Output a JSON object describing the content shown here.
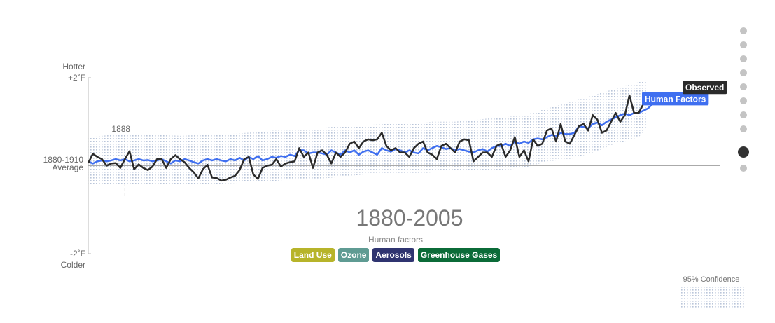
{
  "chart_data": {
    "type": "line",
    "title": "1880-2005",
    "y_top_label": "Hotter",
    "y_bottom_label": "Colder",
    "xlim": [
      1880,
      2005
    ],
    "ylim": [
      -2,
      2
    ],
    "yticks": [
      {
        "value": -2,
        "label": "-2˚F"
      },
      {
        "value": 0,
        "label": "1880-1910 Average"
      },
      {
        "value": 2,
        "label": "+2˚F"
      }
    ],
    "highlight_year": 1888,
    "x": [
      1880,
      1881,
      1882,
      1883,
      1884,
      1885,
      1886,
      1887,
      1888,
      1889,
      1890,
      1891,
      1892,
      1893,
      1894,
      1895,
      1896,
      1897,
      1898,
      1899,
      1900,
      1901,
      1902,
      1903,
      1904,
      1905,
      1906,
      1907,
      1908,
      1909,
      1910,
      1911,
      1912,
      1913,
      1914,
      1915,
      1916,
      1917,
      1918,
      1919,
      1920,
      1921,
      1922,
      1923,
      1924,
      1925,
      1926,
      1927,
      1928,
      1929,
      1930,
      1931,
      1932,
      1933,
      1934,
      1935,
      1936,
      1937,
      1938,
      1939,
      1940,
      1941,
      1942,
      1943,
      1944,
      1945,
      1946,
      1947,
      1948,
      1949,
      1950,
      1951,
      1952,
      1953,
      1954,
      1955,
      1956,
      1957,
      1958,
      1959,
      1960,
      1961,
      1962,
      1963,
      1964,
      1965,
      1966,
      1967,
      1968,
      1969,
      1970,
      1971,
      1972,
      1973,
      1974,
      1975,
      1976,
      1977,
      1978,
      1979,
      1980,
      1981,
      1982,
      1983,
      1984,
      1985,
      1986,
      1987,
      1988,
      1989,
      1990,
      1991,
      1992,
      1993,
      1994,
      1995,
      1996,
      1997,
      1998,
      1999,
      2000,
      2001,
      2002,
      2003,
      2004,
      2005
    ],
    "series": [
      {
        "name": "Human Factors",
        "color": "#3f6ff0",
        "values": [
          0.1,
          0.05,
          0.1,
          0.12,
          0.1,
          0.12,
          0.15,
          0.12,
          0.15,
          0.1,
          0.12,
          0.15,
          0.12,
          0.13,
          0.1,
          0.12,
          0.15,
          0.1,
          0.05,
          0.12,
          0.1,
          0.15,
          0.12,
          0.08,
          0.05,
          0.12,
          0.15,
          0.12,
          0.15,
          0.12,
          0.1,
          0.15,
          0.12,
          0.18,
          0.12,
          0.2,
          0.15,
          0.22,
          0.12,
          0.15,
          0.2,
          0.18,
          0.22,
          0.2,
          0.25,
          0.22,
          0.35,
          0.35,
          0.28,
          0.3,
          0.3,
          0.28,
          0.25,
          0.35,
          0.3,
          0.25,
          0.35,
          0.3,
          0.35,
          0.25,
          0.32,
          0.35,
          0.3,
          0.25,
          0.4,
          0.35,
          0.32,
          0.38,
          0.35,
          0.3,
          0.35,
          0.3,
          0.28,
          0.4,
          0.35,
          0.4,
          0.45,
          0.42,
          0.38,
          0.4,
          0.35,
          0.38,
          0.35,
          0.32,
          0.3,
          0.35,
          0.38,
          0.32,
          0.4,
          0.45,
          0.45,
          0.5,
          0.45,
          0.55,
          0.5,
          0.55,
          0.52,
          0.6,
          0.62,
          0.6,
          0.65,
          0.7,
          0.68,
          0.75,
          0.72,
          0.72,
          0.75,
          0.9,
          0.88,
          0.85,
          0.95,
          0.98,
          0.92,
          1.0,
          1.05,
          1.1,
          1.15,
          1.18,
          1.15,
          1.2,
          1.2,
          1.25,
          1.3,
          1.4,
          1.45,
          1.5
        ]
      },
      {
        "name": "Observed",
        "color": "#2b2b2b",
        "values": [
          0.06,
          0.27,
          0.2,
          0.15,
          0.0,
          0.05,
          0.06,
          -0.05,
          0.15,
          0.33,
          -0.08,
          0.03,
          -0.05,
          -0.1,
          -0.02,
          0.15,
          0.15,
          -0.05,
          0.15,
          0.24,
          0.15,
          0.08,
          -0.05,
          -0.15,
          -0.29,
          -0.08,
          0.02,
          -0.27,
          -0.28,
          -0.34,
          -0.32,
          -0.27,
          -0.23,
          -0.1,
          0.15,
          0.2,
          -0.2,
          -0.3,
          -0.05,
          0.0,
          0.02,
          0.15,
          -0.02,
          0.05,
          0.08,
          0.1,
          0.4,
          0.2,
          0.3,
          -0.05,
          0.3,
          0.35,
          0.25,
          0.05,
          0.3,
          0.2,
          0.3,
          0.5,
          0.55,
          0.4,
          0.55,
          0.6,
          0.58,
          0.6,
          0.75,
          0.45,
          0.35,
          0.4,
          0.3,
          0.3,
          0.2,
          0.4,
          0.5,
          0.55,
          0.3,
          0.25,
          0.15,
          0.45,
          0.5,
          0.4,
          0.3,
          0.55,
          0.6,
          0.58,
          0.1,
          0.2,
          0.3,
          0.3,
          0.2,
          0.45,
          0.5,
          0.2,
          0.35,
          0.65,
          0.2,
          0.35,
          0.1,
          0.6,
          0.45,
          0.5,
          0.8,
          0.85,
          0.55,
          0.95,
          0.55,
          0.5,
          0.7,
          0.9,
          0.95,
          0.8,
          1.15,
          1.05,
          0.75,
          0.8,
          1.0,
          1.2,
          1.0,
          1.15,
          1.6,
          1.2,
          1.2,
          1.4,
          1.55,
          1.52,
          1.4,
          1.55
        ]
      }
    ],
    "confidence": {
      "name": "95% Confidence",
      "x": [
        1880,
        1885,
        1890,
        1895,
        1900,
        1905,
        1910,
        1915,
        1920,
        1925,
        1930,
        1935,
        1940,
        1945,
        1950,
        1955,
        1960,
        1965,
        1970,
        1975,
        1980,
        1985,
        1990,
        1995,
        2000,
        2002
      ],
      "lower": [
        -0.45,
        -0.45,
        -0.42,
        -0.4,
        -0.43,
        -0.42,
        -0.4,
        -0.38,
        -0.35,
        -0.3,
        -0.3,
        -0.25,
        -0.2,
        -0.2,
        -0.2,
        -0.15,
        -0.15,
        -0.15,
        -0.1,
        -0.05,
        0.1,
        0.15,
        0.3,
        0.5,
        0.65,
        0.9
      ],
      "upper": [
        0.65,
        0.7,
        0.72,
        0.7,
        0.68,
        0.7,
        0.72,
        0.75,
        0.8,
        0.8,
        0.85,
        0.9,
        0.92,
        0.95,
        0.95,
        1.0,
        1.0,
        1.05,
        1.1,
        1.15,
        1.3,
        1.45,
        1.6,
        1.75,
        1.9,
        1.95
      ]
    }
  },
  "factors": {
    "label": "Human factors",
    "buttons": [
      {
        "label": "Land Use",
        "color": "#b7b42a"
      },
      {
        "label": "Ozone",
        "color": "#5f9b93"
      },
      {
        "label": "Aerosols",
        "color": "#2f3470"
      },
      {
        "label": "Greenhouse Gases",
        "color": "#0b6b38"
      }
    ]
  }
}
